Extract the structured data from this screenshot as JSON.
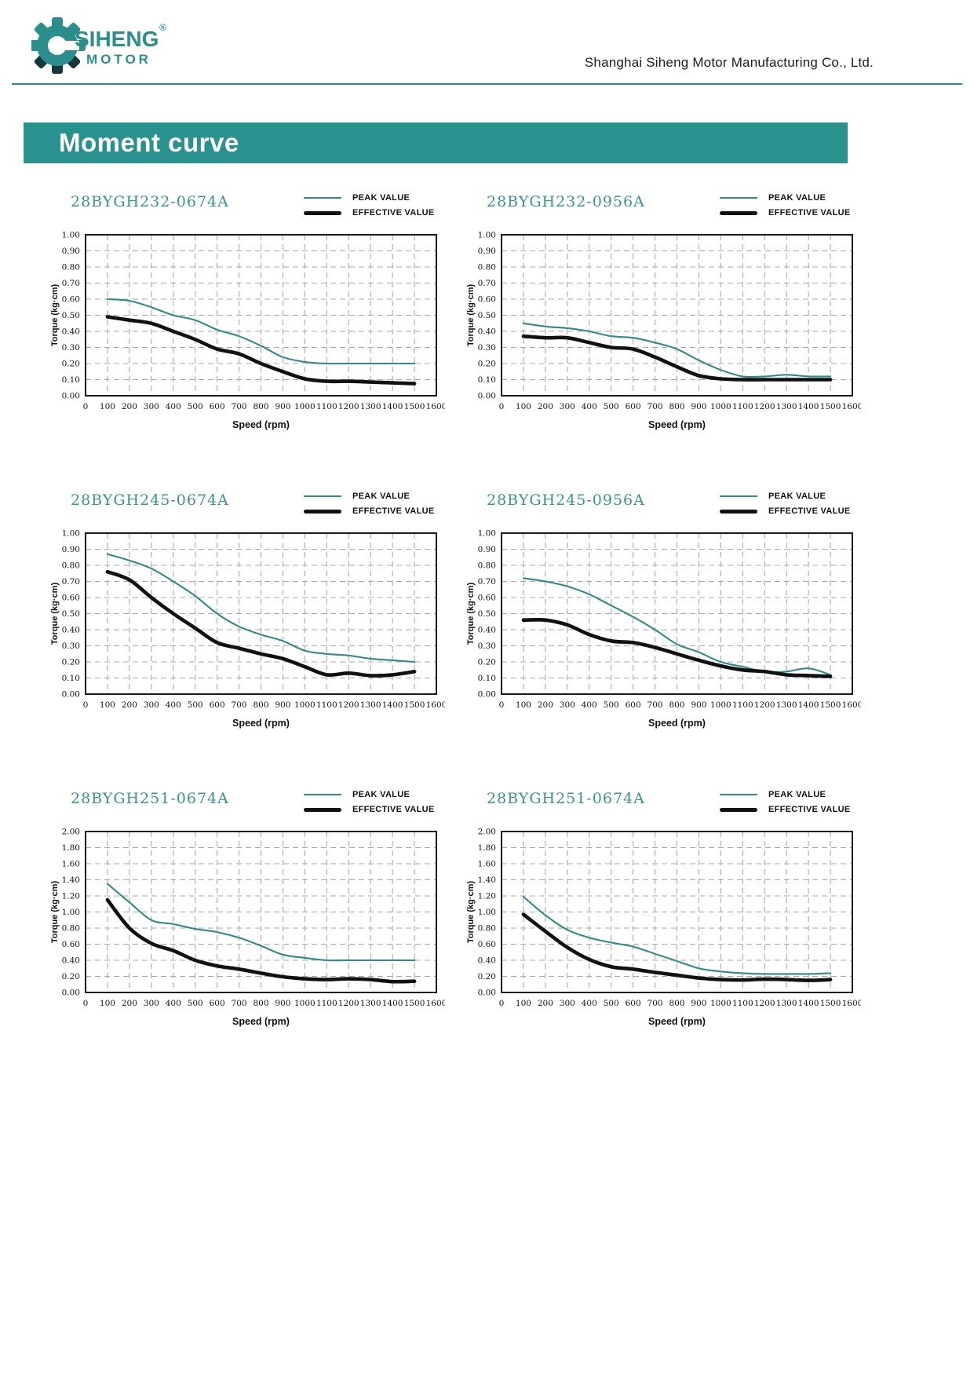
{
  "header": {
    "company": "Shanghai Siheng Motor Manufacturing Co., Ltd.",
    "logo": {
      "line1": "SIHENG",
      "line2": "MOTOR",
      "registered_mark": "®"
    }
  },
  "banner": {
    "title": "Moment curve"
  },
  "legend": {
    "peak_label": "PEAK VALUE",
    "effective_label": "EFFECTIVE VALUE"
  },
  "axis": {
    "x_label": "Speed (rpm)",
    "y_label": "Torque (kg·cm)"
  },
  "colors": {
    "teal_accent": "#2a928e",
    "title_teal": "#38948f",
    "curve_teal": "#2e8b88",
    "curve_black": "#111111",
    "grid_gray": "#a8a8a8",
    "border_black": "#1a1a1a"
  },
  "chart_data": [
    {
      "type": "line",
      "title": "28BYGH232-0674A",
      "xlabel": "Speed (rpm)",
      "ylabel": "Torque (kg·cm)",
      "xlim": [
        0,
        1600
      ],
      "xtick_step": 100,
      "ylim": [
        0,
        1.0
      ],
      "ytick_step": 0.1,
      "grid": "dashed",
      "legend_position": "top-right",
      "x": [
        100,
        200,
        300,
        400,
        500,
        600,
        700,
        800,
        900,
        1000,
        1100,
        1200,
        1300,
        1400,
        1500
      ],
      "series": [
        {
          "name": "PEAK VALUE",
          "color": "teal",
          "values": [
            0.6,
            0.59,
            0.55,
            0.5,
            0.47,
            0.41,
            0.37,
            0.31,
            0.24,
            0.21,
            0.2,
            0.2,
            0.2,
            0.2,
            0.2
          ]
        },
        {
          "name": "EFFECTIVE VALUE",
          "color": "black",
          "values": [
            0.49,
            0.47,
            0.45,
            0.4,
            0.35,
            0.29,
            0.26,
            0.2,
            0.15,
            0.105,
            0.09,
            0.09,
            0.085,
            0.08,
            0.075
          ]
        }
      ]
    },
    {
      "type": "line",
      "title": "28BYGH232-0956A",
      "xlabel": "Speed (rpm)",
      "ylabel": "Torque (kg·cm)",
      "xlim": [
        0,
        1600
      ],
      "xtick_step": 100,
      "ylim": [
        0,
        1.0
      ],
      "ytick_step": 0.1,
      "grid": "dashed",
      "legend_position": "top-right",
      "x": [
        100,
        200,
        300,
        400,
        500,
        600,
        700,
        800,
        900,
        1000,
        1100,
        1200,
        1300,
        1400,
        1500
      ],
      "series": [
        {
          "name": "PEAK VALUE",
          "color": "teal",
          "values": [
            0.45,
            0.43,
            0.42,
            0.4,
            0.37,
            0.36,
            0.33,
            0.29,
            0.22,
            0.16,
            0.12,
            0.12,
            0.13,
            0.12,
            0.12
          ]
        },
        {
          "name": "EFFECTIVE VALUE",
          "color": "black",
          "values": [
            0.37,
            0.36,
            0.36,
            0.33,
            0.3,
            0.29,
            0.24,
            0.18,
            0.125,
            0.105,
            0.1,
            0.1,
            0.1,
            0.1,
            0.1
          ]
        }
      ]
    },
    {
      "type": "line",
      "title": "28BYGH245-0674A",
      "xlabel": "Speed (rpm)",
      "ylabel": "Torque (kg·cm)",
      "xlim": [
        0,
        1600
      ],
      "xtick_step": 100,
      "ylim": [
        0,
        1.0
      ],
      "ytick_step": 0.1,
      "grid": "dashed",
      "legend_position": "top-right",
      "x": [
        100,
        200,
        300,
        400,
        500,
        600,
        700,
        800,
        900,
        1000,
        1100,
        1200,
        1300,
        1400,
        1500
      ],
      "series": [
        {
          "name": "PEAK VALUE",
          "color": "teal",
          "values": [
            0.87,
            0.83,
            0.78,
            0.7,
            0.61,
            0.5,
            0.42,
            0.37,
            0.33,
            0.27,
            0.25,
            0.24,
            0.22,
            0.21,
            0.2
          ]
        },
        {
          "name": "EFFECTIVE VALUE",
          "color": "black",
          "values": [
            0.76,
            0.71,
            0.6,
            0.5,
            0.41,
            0.32,
            0.285,
            0.25,
            0.22,
            0.17,
            0.12,
            0.13,
            0.115,
            0.12,
            0.14
          ]
        }
      ]
    },
    {
      "type": "line",
      "title": "28BYGH245-0956A",
      "xlabel": "Speed (rpm)",
      "ylabel": "Torque (kg·cm)",
      "xlim": [
        0,
        1600
      ],
      "xtick_step": 100,
      "ylim": [
        0,
        1.0
      ],
      "ytick_step": 0.1,
      "grid": "dashed",
      "legend_position": "top-right",
      "x": [
        100,
        200,
        300,
        400,
        500,
        600,
        700,
        800,
        900,
        1000,
        1100,
        1200,
        1300,
        1400,
        1500
      ],
      "series": [
        {
          "name": "PEAK VALUE",
          "color": "teal",
          "values": [
            0.72,
            0.7,
            0.67,
            0.62,
            0.55,
            0.48,
            0.4,
            0.31,
            0.26,
            0.2,
            0.17,
            0.14,
            0.14,
            0.16,
            0.12
          ]
        },
        {
          "name": "EFFECTIVE VALUE",
          "color": "black",
          "values": [
            0.46,
            0.46,
            0.43,
            0.37,
            0.33,
            0.32,
            0.29,
            0.25,
            0.21,
            0.175,
            0.15,
            0.14,
            0.12,
            0.115,
            0.11
          ]
        }
      ]
    },
    {
      "type": "line",
      "title": "28BYGH251-0674A",
      "xlabel": "Speed (rpm)",
      "ylabel": "Torque (kg·cm)",
      "xlim": [
        0,
        1600
      ],
      "xtick_step": 100,
      "ylim": [
        0,
        2.0
      ],
      "ytick_step": 0.2,
      "grid": "dashed",
      "legend_position": "top-right",
      "x": [
        100,
        200,
        300,
        400,
        500,
        600,
        700,
        800,
        900,
        1000,
        1100,
        1200,
        1300,
        1400,
        1500
      ],
      "series": [
        {
          "name": "PEAK VALUE",
          "color": "teal",
          "values": [
            1.35,
            1.12,
            0.9,
            0.85,
            0.79,
            0.75,
            0.68,
            0.58,
            0.47,
            0.43,
            0.4,
            0.4,
            0.4,
            0.4,
            0.4
          ]
        },
        {
          "name": "EFFECTIVE VALUE",
          "color": "black",
          "values": [
            1.15,
            0.8,
            0.61,
            0.52,
            0.4,
            0.33,
            0.29,
            0.24,
            0.195,
            0.17,
            0.16,
            0.17,
            0.16,
            0.135,
            0.14
          ]
        }
      ]
    },
    {
      "type": "line",
      "title": "28BYGH251-0674A",
      "xlabel": "Speed (rpm)",
      "ylabel": "Torque (kg·cm)",
      "xlim": [
        0,
        1600
      ],
      "xtick_step": 100,
      "ylim": [
        0,
        2.0
      ],
      "ytick_step": 0.2,
      "grid": "dashed",
      "legend_position": "top-right",
      "x": [
        100,
        200,
        300,
        400,
        500,
        600,
        700,
        800,
        900,
        1000,
        1100,
        1200,
        1300,
        1400,
        1500
      ],
      "series": [
        {
          "name": "PEAK VALUE",
          "color": "teal",
          "values": [
            1.19,
            0.96,
            0.78,
            0.68,
            0.62,
            0.57,
            0.48,
            0.39,
            0.3,
            0.26,
            0.24,
            0.23,
            0.23,
            0.23,
            0.24
          ]
        },
        {
          "name": "EFFECTIVE VALUE",
          "color": "black",
          "values": [
            0.97,
            0.76,
            0.56,
            0.41,
            0.32,
            0.29,
            0.25,
            0.215,
            0.18,
            0.16,
            0.155,
            0.165,
            0.16,
            0.15,
            0.16
          ]
        }
      ]
    }
  ]
}
